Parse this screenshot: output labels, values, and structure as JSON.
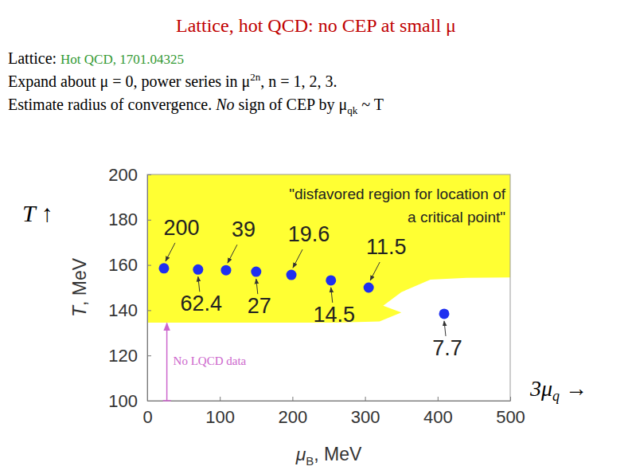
{
  "slide": {
    "title": "Lattice, hot QCD: no CEP at small μ",
    "line1": [
      "Lattice: ",
      "Hot QCD, 1701.04325"
    ],
    "line2": [
      "Expand about μ = 0, power series in μ",
      "2n",
      ", n = 1, 2, 3."
    ],
    "line3": [
      "Estimate radius of convergence. ",
      "No",
      " sign of CEP by μ",
      "qk",
      " ~ T"
    ],
    "left_label": "T ↑",
    "right_label": [
      "3μ",
      "q",
      " →"
    ]
  },
  "chart_data": {
    "type": "scatter",
    "x": [
      23,
      70,
      108.5,
      150,
      198.5,
      253,
      305,
      409
    ],
    "y": [
      158.5,
      158,
      157.7,
      157,
      155.6,
      153.2,
      150,
      138.4
    ],
    "point_labels": [
      200,
      62.4,
      39,
      27,
      19.6,
      14.5,
      11.5,
      7.7
    ],
    "color": "#1f2ff0",
    "marker": "circle",
    "xlabel": [
      "μ",
      "B",
      ", MeV"
    ],
    "ylabel": [
      "T",
      ", MeV"
    ],
    "xlim": [
      0,
      500
    ],
    "ylim": [
      100,
      200
    ],
    "xticks": [
      0,
      100,
      200,
      300,
      400,
      500
    ],
    "yticks": [
      100,
      120,
      140,
      160,
      180,
      200
    ],
    "region": {
      "label": [
        "\"disfavored region for location of",
        "a critical point\""
      ],
      "color": "#ffff33",
      "x": [
        0,
        500,
        500,
        440,
        390,
        350,
        325,
        350,
        320,
        260,
        0
      ],
      "y": [
        200,
        200,
        154.5,
        154.3,
        153.5,
        148,
        142,
        139,
        135,
        134.5,
        134.5
      ]
    },
    "no_data": {
      "text": "No LQCD data",
      "color": "#cc66cc",
      "x": 27,
      "y": [
        100,
        135
      ]
    }
  }
}
